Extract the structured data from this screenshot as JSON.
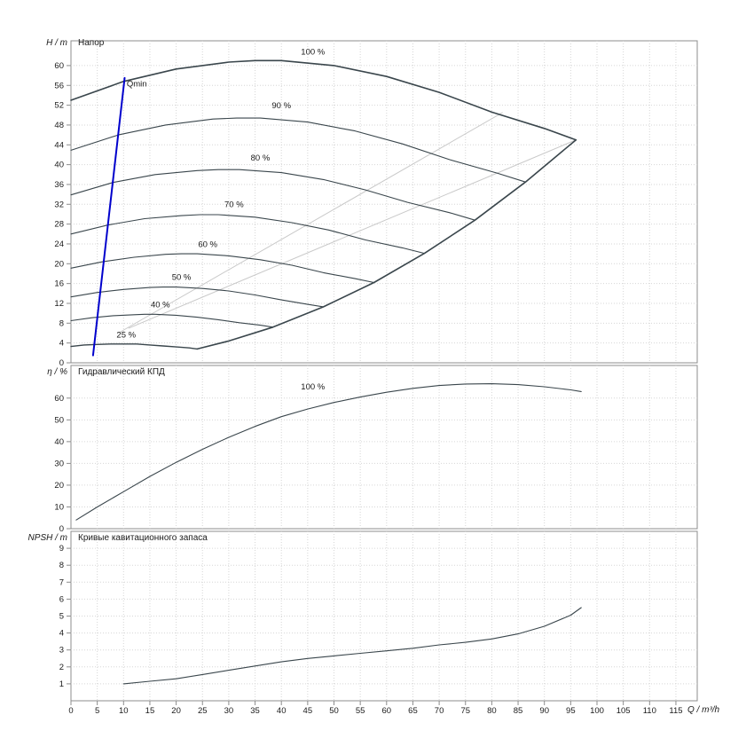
{
  "window": {
    "background": "#ffffff"
  },
  "chart_data": {
    "type": "line",
    "x_axis": {
      "label": "Q / m³/h",
      "min": 0,
      "max": 119,
      "ticks": [
        0,
        5,
        10,
        15,
        20,
        25,
        30,
        35,
        40,
        45,
        50,
        55,
        60,
        65,
        70,
        75,
        80,
        85,
        90,
        95,
        100,
        105,
        110,
        115
      ]
    },
    "colors": {
      "curve": "#3a464c",
      "grid": "#d6d6d6",
      "frame": "#8c8c8c",
      "text": "#1a1a1a",
      "qmin": "#0000cc",
      "iso": "#c9c9c9"
    },
    "panels": [
      {
        "name": "head",
        "title": "Напор",
        "y_axis": {
          "label": "H / m",
          "min": 0,
          "max": 65,
          "ticks": [
            0,
            4,
            8,
            12,
            16,
            20,
            24,
            28,
            32,
            36,
            40,
            44,
            48,
            52,
            56,
            60
          ]
        },
        "series": [
          {
            "name": "iso-line-1",
            "color": "#c9c9c9",
            "width": 1,
            "points": [
              [
                11,
                7
              ],
              [
                96,
                45
              ]
            ]
          },
          {
            "name": "iso-line-2",
            "color": "#c9c9c9",
            "width": 1,
            "points": [
              [
                9,
                6
              ],
              [
                82,
                50.5
              ]
            ]
          },
          {
            "name": "speed-25",
            "label": "25 %",
            "label_at": [
              10.5,
              5.1
            ],
            "width": 1.4,
            "points": [
              [
                0,
                3.3
              ],
              [
                2.5,
                3.6
              ],
              [
                5,
                3.7
              ],
              [
                7.5,
                3.8
              ],
              [
                10,
                3.8
              ],
              [
                12.5,
                3.8
              ],
              [
                15,
                3.6
              ],
              [
                17.5,
                3.4
              ],
              [
                20,
                3.2
              ],
              [
                22.5,
                3.0
              ],
              [
                24,
                2.8
              ]
            ]
          },
          {
            "name": "speed-40",
            "label": "40 %",
            "label_at": [
              17,
              11.2
            ],
            "points": [
              [
                0,
                8.5
              ],
              [
                4,
                9.1
              ],
              [
                8,
                9.5
              ],
              [
                12,
                9.7
              ],
              [
                14,
                9.8
              ],
              [
                16,
                9.8
              ],
              [
                20,
                9.6
              ],
              [
                24,
                9.2
              ],
              [
                28,
                8.7
              ],
              [
                32,
                8.1
              ],
              [
                36,
                7.6
              ],
              [
                38.4,
                7.2
              ]
            ]
          },
          {
            "name": "speed-50",
            "label": "50 %",
            "label_at": [
              21,
              16.7
            ],
            "points": [
              [
                0,
                13.3
              ],
              [
                5,
                14.2
              ],
              [
                10,
                14.8
              ],
              [
                15,
                15.2
              ],
              [
                17.5,
                15.3
              ],
              [
                20,
                15.3
              ],
              [
                25,
                15.0
              ],
              [
                30,
                14.5
              ],
              [
                35,
                13.7
              ],
              [
                40,
                12.7
              ],
              [
                45,
                11.8
              ],
              [
                48,
                11.3
              ]
            ]
          },
          {
            "name": "speed-60",
            "label": "60 %",
            "label_at": [
              26,
              23.4
            ],
            "points": [
              [
                0,
                19.1
              ],
              [
                6,
                20.4
              ],
              [
                12,
                21.3
              ],
              [
                18,
                21.9
              ],
              [
                21,
                22.0
              ],
              [
                24,
                22.0
              ],
              [
                30,
                21.6
              ],
              [
                36,
                20.8
              ],
              [
                42,
                19.7
              ],
              [
                48,
                18.2
              ],
              [
                54,
                17.0
              ],
              [
                57.6,
                16.2
              ]
            ]
          },
          {
            "name": "speed-70",
            "label": "70 %",
            "label_at": [
              31,
              31.4
            ],
            "points": [
              [
                0,
                26.0
              ],
              [
                7,
                27.8
              ],
              [
                14,
                29.1
              ],
              [
                21,
                29.7
              ],
              [
                24.5,
                29.9
              ],
              [
                28,
                29.9
              ],
              [
                35,
                29.4
              ],
              [
                42,
                28.3
              ],
              [
                49,
                26.8
              ],
              [
                56,
                24.8
              ],
              [
                63,
                23.2
              ],
              [
                67.2,
                22.1
              ]
            ]
          },
          {
            "name": "speed-80",
            "label": "80 %",
            "label_at": [
              36,
              40.8
            ],
            "points": [
              [
                0,
                33.9
              ],
              [
                8,
                36.4
              ],
              [
                16,
                38.0
              ],
              [
                24,
                38.8
              ],
              [
                28,
                39.0
              ],
              [
                32,
                39.0
              ],
              [
                40,
                38.4
              ],
              [
                48,
                37.0
              ],
              [
                56,
                34.9
              ],
              [
                64,
                32.4
              ],
              [
                72,
                30.3
              ],
              [
                76.8,
                28.8
              ]
            ]
          },
          {
            "name": "speed-90",
            "label": "90 %",
            "label_at": [
              40,
              51.4
            ],
            "points": [
              [
                0,
                42.9
              ],
              [
                9,
                46.0
              ],
              [
                18,
                48.0
              ],
              [
                27,
                49.2
              ],
              [
                31.5,
                49.4
              ],
              [
                36,
                49.4
              ],
              [
                45,
                48.6
              ],
              [
                54,
                46.8
              ],
              [
                63,
                44.2
              ],
              [
                72,
                41.0
              ],
              [
                81,
                38.3
              ],
              [
                86.4,
                36.5
              ]
            ]
          },
          {
            "name": "speed-100",
            "label": "100 %",
            "label_at": [
              46,
              62.2
            ],
            "width": 1.6,
            "points": [
              [
                0,
                53
              ],
              [
                10,
                56.8
              ],
              [
                20,
                59.3
              ],
              [
                30,
                60.7
              ],
              [
                35,
                61
              ],
              [
                40,
                61
              ],
              [
                50,
                60
              ],
              [
                60,
                57.8
              ],
              [
                70,
                54.6
              ],
              [
                80,
                50.6
              ],
              [
                90,
                47.3
              ],
              [
                96,
                45
              ]
            ]
          },
          {
            "name": "max-flow-envelope",
            "width": 1.6,
            "points": [
              [
                24,
                2.8
              ],
              [
                30,
                4.4
              ],
              [
                38.4,
                7.2
              ],
              [
                48,
                11.3
              ],
              [
                57.6,
                16.2
              ],
              [
                67.2,
                22.1
              ],
              [
                76.8,
                28.8
              ],
              [
                86.4,
                36.5
              ],
              [
                96,
                45
              ]
            ]
          },
          {
            "name": "qmin-limit",
            "label": "Qmin",
            "label_at": [
              10.6,
              55.8
            ],
            "label_anchor": "start",
            "color": "#0000cc",
            "width": 2,
            "points": [
              [
                4.2,
                1.5
              ],
              [
                10.2,
                57.5
              ]
            ]
          }
        ]
      },
      {
        "name": "efficiency",
        "title": "Гидравлический КПД",
        "y_axis": {
          "label": "η / %",
          "min": 0,
          "max": 75,
          "ticks": [
            0,
            10,
            20,
            30,
            40,
            50,
            60
          ]
        },
        "series": [
          {
            "name": "efficiency-100",
            "label": "100 %",
            "label_at": [
              46,
              64
            ],
            "points": [
              [
                1,
                4
              ],
              [
                5,
                10
              ],
              [
                10,
                17
              ],
              [
                15,
                24
              ],
              [
                20,
                30.5
              ],
              [
                25,
                36.5
              ],
              [
                30,
                42
              ],
              [
                35,
                47
              ],
              [
                40,
                51.5
              ],
              [
                45,
                55
              ],
              [
                50,
                58
              ],
              [
                55,
                60.5
              ],
              [
                60,
                62.7
              ],
              [
                65,
                64.5
              ],
              [
                70,
                65.8
              ],
              [
                75,
                66.5
              ],
              [
                80,
                66.6
              ],
              [
                85,
                66.2
              ],
              [
                90,
                65.2
              ],
              [
                95,
                63.8
              ],
              [
                97,
                63
              ]
            ]
          }
        ]
      },
      {
        "name": "npsh",
        "title": "Кривые кавитационного запаса",
        "y_axis": {
          "label": "NPSH / m",
          "min": 0,
          "max": 10,
          "ticks": [
            1,
            2,
            3,
            4,
            5,
            6,
            7,
            8,
            9
          ]
        },
        "series": [
          {
            "name": "npsh-100",
            "points": [
              [
                10,
                1
              ],
              [
                15,
                1.15
              ],
              [
                20,
                1.3
              ],
              [
                25,
                1.55
              ],
              [
                30,
                1.8
              ],
              [
                35,
                2.05
              ],
              [
                40,
                2.3
              ],
              [
                45,
                2.5
              ],
              [
                50,
                2.65
              ],
              [
                55,
                2.8
              ],
              [
                60,
                2.95
              ],
              [
                65,
                3.1
              ],
              [
                70,
                3.3
              ],
              [
                75,
                3.45
              ],
              [
                80,
                3.65
              ],
              [
                85,
                3.95
              ],
              [
                90,
                4.4
              ],
              [
                95,
                5.05
              ],
              [
                97,
                5.5
              ]
            ]
          }
        ]
      }
    ]
  }
}
